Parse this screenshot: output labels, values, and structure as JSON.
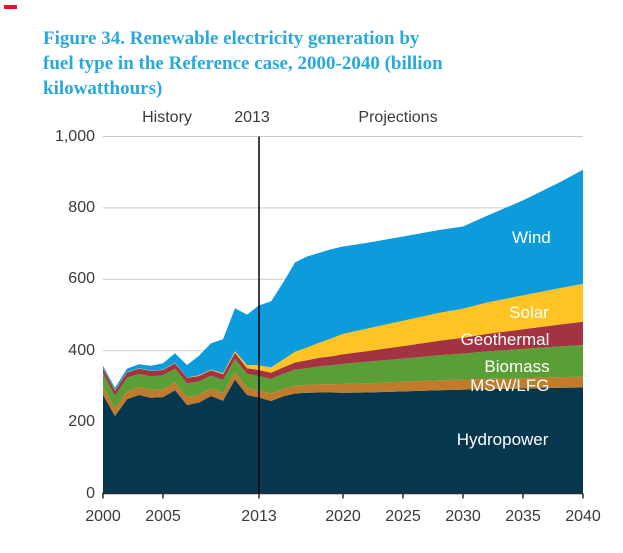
{
  "page": {
    "background": "#FFFFFF",
    "corner_mark_color": "#E8112D"
  },
  "title": {
    "text": "Figure 34. Renewable electricity generation by fuel type in the Reference case, 2000-2040 (billion kilowatthours)",
    "lines": [
      "Figure 34. Renewable electricity generation by",
      "fuel type in the Reference case, 2000-2040 (billion",
      "kilowatthours)"
    ],
    "color": "#29A8E0"
  },
  "phase_labels": {
    "history": "History",
    "boundary_year": "2013",
    "projections": "Projections"
  },
  "chart_data": {
    "type": "area",
    "stacked": true,
    "title": "Figure 34. Renewable electricity generation by fuel type in the Reference case, 2000-2040 (billion kilowatthours)",
    "unit": "billion kilowatthours",
    "xlim": [
      2000,
      2040
    ],
    "ylim": [
      0,
      1000
    ],
    "grid": "horizontal",
    "divider_year": 2013,
    "axis_color": "#2B2B2B",
    "grid_color": "#C9C9C9",
    "divider_color": "#000000",
    "x": [
      2000,
      2001,
      2002,
      2003,
      2004,
      2005,
      2006,
      2007,
      2008,
      2009,
      2010,
      2011,
      2012,
      2013,
      2014,
      2015,
      2016,
      2017,
      2018,
      2019,
      2020,
      2022,
      2025,
      2028,
      2030,
      2032,
      2035,
      2038,
      2040
    ],
    "series": [
      {
        "name": "Hydropower",
        "color": "#07374F",
        "values": [
          276,
          217,
          264,
          276,
          268,
          270,
          289,
          248,
          255,
          273,
          260,
          319,
          276,
          269,
          259,
          272,
          280,
          282,
          283,
          283,
          282,
          283,
          286,
          289,
          291,
          292,
          294,
          296,
          297
        ]
      },
      {
        "name": "MSW/LFG",
        "color": "#C07B2C",
        "values": [
          23,
          22,
          22,
          22,
          22,
          22,
          22,
          22,
          22,
          21,
          21,
          21,
          21,
          20,
          21,
          21,
          22,
          22,
          23,
          23,
          25,
          26,
          27,
          28,
          28,
          29,
          29,
          30,
          30
        ]
      },
      {
        "name": "Biomass",
        "color": "#5A9E36",
        "values": [
          38,
          35,
          38,
          37,
          38,
          39,
          39,
          39,
          37,
          36,
          37,
          37,
          38,
          40,
          41,
          42,
          45,
          47,
          50,
          53,
          56,
          60,
          65,
          70,
          73,
          77,
          82,
          86,
          89
        ]
      },
      {
        "name": "Geothermal",
        "color": "#A33242",
        "values": [
          14,
          14,
          15,
          15,
          15,
          15,
          15,
          15,
          15,
          15,
          16,
          17,
          16,
          17,
          17,
          18,
          20,
          22,
          24,
          25,
          27,
          30,
          35,
          41,
          44,
          49,
          55,
          61,
          65
        ]
      },
      {
        "name": "Solar",
        "color": "#FFC423",
        "values": [
          1,
          1,
          1,
          1,
          1,
          1,
          1,
          1,
          2,
          2,
          3,
          5,
          9,
          13,
          15,
          22,
          30,
          36,
          42,
          50,
          57,
          63,
          71,
          78,
          82,
          88,
          95,
          102,
          106
        ]
      },
      {
        "name": "Wind",
        "color": "#0D9CDB",
        "values": [
          6,
          7,
          10,
          11,
          14,
          18,
          27,
          35,
          55,
          74,
          95,
          120,
          141,
          168,
          185,
          215,
          250,
          255,
          252,
          250,
          245,
          240,
          236,
          232,
          230,
          243,
          266,
          296,
          320
        ]
      }
    ],
    "annotations": [
      {
        "text": "Wind",
        "year": 2035.7,
        "value": 717
      },
      {
        "text": "Solar",
        "year": 2035.5,
        "value": 507
      },
      {
        "text": "Geothermal",
        "year": 2033.5,
        "value": 430
      },
      {
        "text": "Biomass",
        "year": 2034.5,
        "value": 354
      },
      {
        "text": "MSW/LFG",
        "year": 2033.9,
        "value": 302
      },
      {
        "text": "Hydropower",
        "year": 2033.3,
        "value": 151
      }
    ],
    "y_ticks": [
      {
        "value": 0,
        "label": "0"
      },
      {
        "value": 200,
        "label": "200"
      },
      {
        "value": 400,
        "label": "400"
      },
      {
        "value": 600,
        "label": "600"
      },
      {
        "value": 800,
        "label": "800"
      },
      {
        "value": 1000,
        "label": "1,000"
      }
    ],
    "x_ticks": [
      {
        "value": 2000,
        "label": "2000"
      },
      {
        "value": 2005,
        "label": "2005"
      },
      {
        "value": 2013,
        "label": "2013"
      },
      {
        "value": 2020,
        "label": "2020"
      },
      {
        "value": 2025,
        "label": "2025"
      },
      {
        "value": 2030,
        "label": "2030"
      },
      {
        "value": 2035,
        "label": "2035"
      },
      {
        "value": 2040,
        "label": "2040"
      }
    ]
  }
}
